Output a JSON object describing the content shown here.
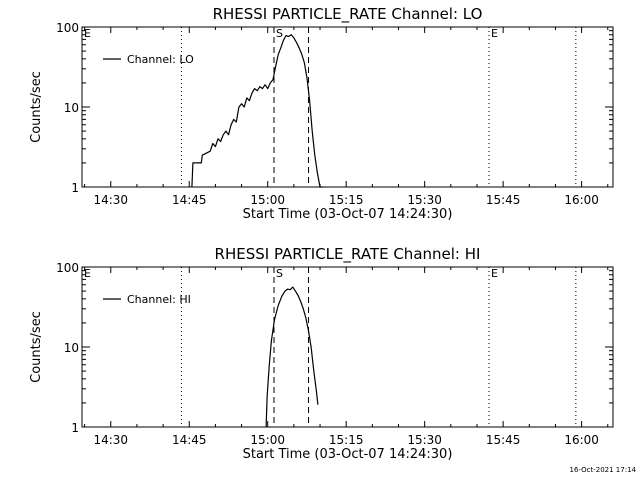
{
  "timestamp": "16-Oct-2021 17:14",
  "chart_data": [
    {
      "type": "line",
      "title": "RHESSI PARTICLE_RATE Channel: LO",
      "xlabel": "Start Time (03-Oct-07 14:24:30)",
      "ylabel": "Counts/sec",
      "x_unit": "minutes after 14:24:30",
      "xlim": [
        0,
        101.5
      ],
      "ylim": [
        1,
        100
      ],
      "y_scale": "log",
      "x_tick_labels": [
        "14:30",
        "14:45",
        "15:00",
        "15:15",
        "15:30",
        "15:45",
        "16:00"
      ],
      "x_tick_values": [
        5.5,
        20.5,
        35.5,
        50.5,
        65.5,
        80.5,
        95.5
      ],
      "y_tick_labels": [
        "1",
        "10",
        "100"
      ],
      "y_tick_values": [
        1,
        10,
        100
      ],
      "legend": "Channel: LO",
      "legend_position": "top-left",
      "markers": [
        {
          "label": "E",
          "x": 0,
          "style": "dotted"
        },
        {
          "label": "",
          "x": 19,
          "style": "dotted"
        },
        {
          "label": "S",
          "x": 36.7,
          "style": "dashed"
        },
        {
          "label": "",
          "x": 43.3,
          "style": "dashed"
        },
        {
          "label": "E",
          "x": 77.8,
          "style": "dotted"
        },
        {
          "label": "",
          "x": 94.4,
          "style": "dotted"
        }
      ],
      "series": [
        {
          "x": [
            21.0,
            21.2,
            22.8,
            23.0,
            24.5,
            25.0,
            25.5,
            26.0,
            26.5,
            27.0,
            27.5,
            28.0,
            28.5,
            29.0,
            29.5,
            30.0,
            30.5,
            31.0,
            31.5,
            32.0,
            32.5,
            33.0,
            33.5,
            34.0,
            34.5,
            35.0,
            35.5,
            36.0,
            36.5,
            37.0,
            37.5,
            38.0,
            38.5,
            39.0,
            39.5,
            40.0,
            40.5,
            41.0,
            41.5,
            42.0,
            42.5,
            43.0,
            43.5,
            44.0,
            44.5,
            45.0,
            45.5,
            46.0
          ],
          "y": [
            1,
            2,
            2,
            2.5,
            2.8,
            3.5,
            3.2,
            4,
            3.7,
            4.5,
            5,
            4.5,
            6,
            7,
            6.5,
            10,
            11,
            10,
            13,
            12,
            15,
            17,
            16,
            18,
            17,
            19,
            17,
            20,
            22,
            32,
            45,
            55,
            68,
            78,
            76,
            80,
            73,
            64,
            55,
            46,
            36,
            23,
            12,
            5,
            2.5,
            1.5,
            1,
            1
          ]
        }
      ]
    },
    {
      "type": "line",
      "title": "RHESSI PARTICLE_RATE Channel: HI",
      "xlabel": "Start Time (03-Oct-07 14:24:30)",
      "ylabel": "Counts/sec",
      "x_unit": "minutes after 14:24:30",
      "xlim": [
        0,
        101.5
      ],
      "ylim": [
        1,
        100
      ],
      "y_scale": "log",
      "x_tick_labels": [
        "14:30",
        "14:45",
        "15:00",
        "15:15",
        "15:30",
        "15:45",
        "16:00"
      ],
      "x_tick_values": [
        5.5,
        20.5,
        35.5,
        50.5,
        65.5,
        80.5,
        95.5
      ],
      "y_tick_labels": [
        "1",
        "10",
        "100"
      ],
      "y_tick_values": [
        1,
        10,
        100
      ],
      "legend": "Channel: HI",
      "legend_position": "top-left",
      "markers": [
        {
          "label": "E",
          "x": 0,
          "style": "dotted"
        },
        {
          "label": "",
          "x": 19,
          "style": "dotted"
        },
        {
          "label": "S",
          "x": 36.7,
          "style": "dashed"
        },
        {
          "label": "",
          "x": 43.3,
          "style": "dashed"
        },
        {
          "label": "E",
          "x": 77.8,
          "style": "dotted"
        },
        {
          "label": "",
          "x": 94.4,
          "style": "dotted"
        }
      ],
      "series": [
        {
          "x": [
            35.2,
            35.4,
            35.8,
            36.2,
            36.8,
            37.5,
            38.2,
            38.8,
            39.3,
            39.8,
            40.3,
            40.8,
            41.3,
            41.8,
            42.3,
            42.8,
            43.3,
            43.8,
            44.3,
            44.8,
            45.1
          ],
          "y": [
            1,
            2.5,
            6,
            12,
            22,
            33,
            43,
            50,
            53,
            52,
            56,
            50,
            44,
            37,
            30,
            23,
            16,
            10,
            5,
            2.8,
            1.9
          ]
        }
      ]
    }
  ]
}
